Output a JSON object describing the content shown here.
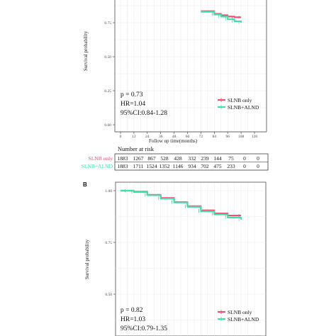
{
  "colors": {
    "slnb_only": "#f0506e",
    "slnb_alnd": "#3fe0b0"
  },
  "chart_data": [
    {
      "type": "line",
      "panel": "",
      "xlabel": "Follow up time(months)",
      "ylabel": "Survival probability",
      "xlim": [
        0,
        120
      ],
      "ylim": [
        0,
        1
      ],
      "x_ticks": [
        0,
        12,
        24,
        36,
        48,
        60,
        72,
        84,
        96,
        108,
        120
      ],
      "x_tick_labels": [
        "0",
        "12",
        "24",
        "36",
        "48",
        "60",
        "72",
        "84",
        "96",
        "108",
        "120"
      ],
      "y_ticks": [
        0,
        0.25,
        0.5,
        0.75
      ],
      "y_tick_labels": [
        "0.00",
        "0.25",
        "0.50",
        "0.75"
      ],
      "grid": true,
      "legend": {
        "position": "bottom-right",
        "entries": [
          "SLNB only",
          "SLNB+ALND"
        ]
      },
      "annotations": [
        "p = 0.73",
        "HR=1.04",
        "95%CI:0.84-1.28"
      ],
      "series": [
        {
          "name": "SLNB only",
          "x": [
            72,
            84,
            90,
            96,
            102,
            108
          ],
          "y": [
            0.835,
            0.815,
            0.805,
            0.795,
            0.79,
            0.79
          ]
        },
        {
          "name": "SLNB+ALND",
          "x": [
            72,
            84,
            90,
            96,
            102,
            108
          ],
          "y": [
            0.83,
            0.81,
            0.795,
            0.775,
            0.76,
            0.75
          ]
        }
      ],
      "risk_table": {
        "title": "Number at risk",
        "rows": [
          {
            "label": "SLNB only",
            "values": [
              "1883",
              "1267",
              "867",
              "528",
              "428",
              "332",
              "239",
              "144",
              "75",
              "0",
              "0"
            ]
          },
          {
            "label": "SLNB+ALND",
            "values": [
              "1883",
              "1711",
              "1524",
              "1352",
              "1146",
              "934",
              "702",
              "475",
              "233",
              "0",
              "0"
            ]
          }
        ]
      }
    },
    {
      "type": "line",
      "panel": "B",
      "xlabel": "",
      "ylabel": "Survival probability",
      "xlim": [
        0,
        120
      ],
      "ylim": [
        0,
        1
      ],
      "y_ticks": [
        0.25,
        0.5,
        0.75,
        1.0
      ],
      "y_tick_labels": [
        "0.25",
        "0.50",
        "0.75",
        "1.00"
      ],
      "grid": true,
      "legend": {
        "position": "bottom-right",
        "entries": [
          "SLNB only",
          "SLNB+ALND"
        ]
      },
      "annotations": [
        "p = 0.82",
        "HR=1.03",
        "95%CI:0.79-1.35"
      ],
      "series": [
        {
          "name": "SLNB only",
          "x": [
            0,
            6,
            12,
            24,
            36,
            48,
            60,
            72,
            84,
            96,
            108
          ],
          "y": [
            1.0,
            1.0,
            0.995,
            0.98,
            0.965,
            0.945,
            0.925,
            0.905,
            0.89,
            0.88,
            0.88
          ]
        },
        {
          "name": "SLNB+ALND",
          "x": [
            0,
            6,
            12,
            24,
            36,
            48,
            60,
            72,
            84,
            96,
            108
          ],
          "y": [
            1.0,
            1.0,
            0.993,
            0.978,
            0.962,
            0.943,
            0.922,
            0.9,
            0.885,
            0.87,
            0.86
          ]
        }
      ]
    }
  ]
}
